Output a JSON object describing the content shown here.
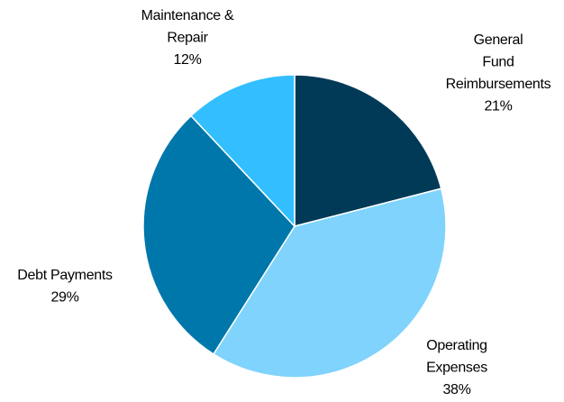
{
  "chart_data": {
    "type": "pie",
    "categories": [
      [
        "General",
        "Fund",
        "Reimbursements"
      ],
      [
        "Operating",
        "Expenses"
      ],
      [
        "Debt Payments"
      ],
      [
        "Maintenance &",
        "Repair"
      ]
    ],
    "values": [
      21,
      38,
      29,
      12
    ],
    "value_labels": [
      "21%",
      "38%",
      "29%",
      "12%"
    ],
    "colors": [
      "#003a57",
      "#7fd3fc",
      "#0077ab",
      "#33bfff"
    ]
  }
}
